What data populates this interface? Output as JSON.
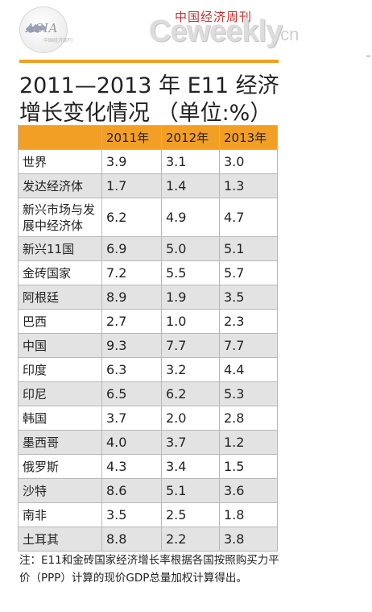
{
  "header": {
    "asia_logo_text": "ASIA",
    "asia_logo_sub": "中国经济周刊",
    "magazine_cn": "中国经济周刊",
    "magazine_logo": "Ceweekly",
    "magazine_domain": ".cn"
  },
  "title": {
    "line1": "2011—2013 年 E11 经济",
    "line2": "增长变化情况 （单位:%）"
  },
  "table": {
    "headers": [
      "",
      "2011年",
      "2012年",
      "2013年"
    ],
    "rows": [
      {
        "name": "世界",
        "v2011": "3.9",
        "v2012": "3.1",
        "v2013": "3.0"
      },
      {
        "name": "发达经济体",
        "v2011": "1.7",
        "v2012": "1.4",
        "v2013": "1.3"
      },
      {
        "name": "新兴市场与发展中经济体",
        "v2011": "6.2",
        "v2012": "4.9",
        "v2013": "4.7"
      },
      {
        "name": "新兴11国",
        "v2011": "6.9",
        "v2012": "5.0",
        "v2013": "5.1"
      },
      {
        "name": "金砖国家",
        "v2011": "7.2",
        "v2012": "5.5",
        "v2013": "5.7"
      },
      {
        "name": "阿根廷",
        "v2011": "8.9",
        "v2012": "1.9",
        "v2013": "3.5"
      },
      {
        "name": "巴西",
        "v2011": "2.7",
        "v2012": "1.0",
        "v2013": "2.3"
      },
      {
        "name": "中国",
        "v2011": "9.3",
        "v2012": "7.7",
        "v2013": "7.7"
      },
      {
        "name": "印度",
        "v2011": "6.3",
        "v2012": "3.2",
        "v2013": "4.4"
      },
      {
        "name": "印尼",
        "v2011": "6.5",
        "v2012": "6.2",
        "v2013": "5.3"
      },
      {
        "name": "韩国",
        "v2011": "3.7",
        "v2012": "2.0",
        "v2013": "2.8"
      },
      {
        "name": "墨西哥",
        "v2011": "4.0",
        "v2012": "3.7",
        "v2013": "1.2"
      },
      {
        "name": "俄罗斯",
        "v2011": "4.3",
        "v2012": "3.4",
        "v2013": "1.5"
      },
      {
        "name": "沙特",
        "v2011": "8.6",
        "v2012": "5.1",
        "v2013": "3.6"
      },
      {
        "name": "南非",
        "v2011": "3.5",
        "v2012": "2.5",
        "v2013": "1.8"
      },
      {
        "name": "土耳其",
        "v2011": "8.8",
        "v2012": "2.2",
        "v2013": "3.8"
      }
    ]
  },
  "note": "注：E11和金砖国家经济增长率根据各国按照购买力平价（PPP）计算的现价GDP总量加权计算得出。",
  "colors": {
    "accent_orange": "#f29f26",
    "row_alt": "#e3e3e3",
    "logo_red": "#c9302c"
  }
}
